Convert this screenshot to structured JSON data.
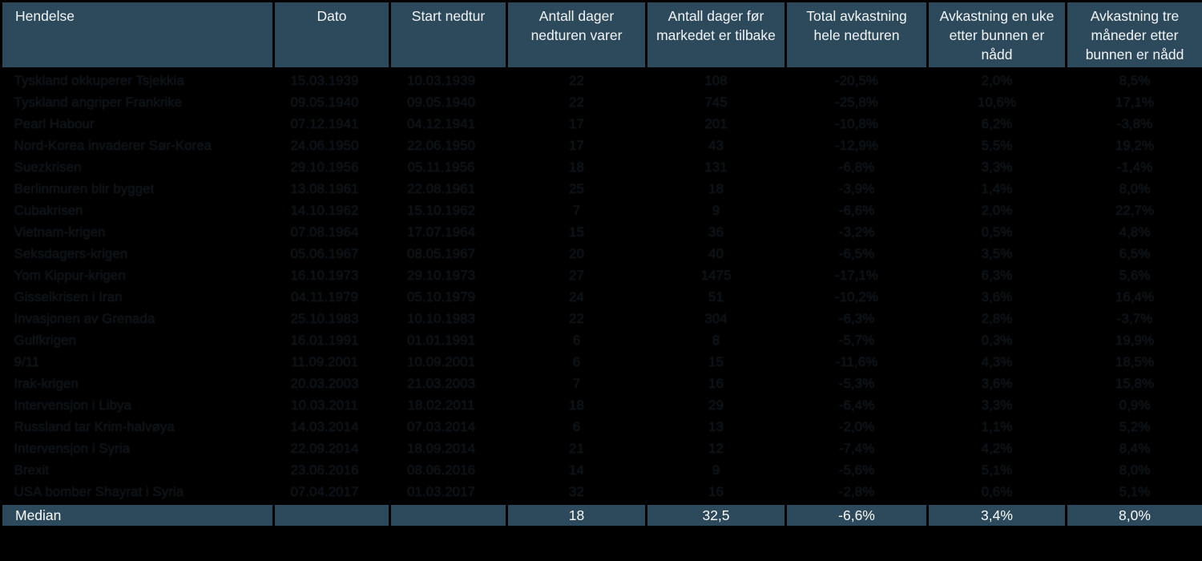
{
  "colors": {
    "header_bg": "#2d4a5c",
    "header_text": "#f2f4f6",
    "body_bg": "#000000",
    "body_text": "#0b1014",
    "footer_bg": "#2d4a5c",
    "footer_text": "#fafafa",
    "grid_border": "#000000"
  },
  "chart_data": {
    "type": "table",
    "columns": [
      "Hendelse",
      "Dato",
      "Start nedtur",
      "Antall dager nedturen varer",
      "Antall dager før markedet er tilbake",
      "Total avkastning hele nedturen",
      "Avkastning en uke etter bunnen er nådd",
      "Avkastning tre måneder etter bunnen er nådd"
    ],
    "rows": [
      [
        "Tyskland okkuperer Tsjekkia",
        "15.03.1939",
        "10.03.1939",
        "22",
        "108",
        "-20,5%",
        "2,0%",
        "8,5%"
      ],
      [
        "Tyskland angriper Frankrike",
        "09.05.1940",
        "09.05.1940",
        "22",
        "745",
        "-25,8%",
        "10,6%",
        "17,1%"
      ],
      [
        "Pearl Habour",
        "07.12.1941",
        "04.12.1941",
        "17",
        "201",
        "-10,8%",
        "6,2%",
        "-3,8%"
      ],
      [
        "Nord-Korea invaderer Sør-Korea",
        "24.06.1950",
        "22.06.1950",
        "17",
        "43",
        "-12,9%",
        "5,5%",
        "19,2%"
      ],
      [
        "Suezkrisen",
        "29.10.1956",
        "05.11.1956",
        "18",
        "131",
        "-6,8%",
        "3,3%",
        "-1,4%"
      ],
      [
        "Berlinmuren blir bygget",
        "13.08.1961",
        "22.08.1961",
        "25",
        "18",
        "-3,9%",
        "1,4%",
        "8,0%"
      ],
      [
        "Cubakrisen",
        "14.10.1962",
        "15.10.1962",
        "7",
        "9",
        "-6,6%",
        "2,0%",
        "22,7%"
      ],
      [
        "Vietnam-krigen",
        "07.08.1964",
        "17.07.1964",
        "15",
        "36",
        "-3,2%",
        "0,5%",
        "4,8%"
      ],
      [
        "Seksdagers-krigen",
        "05.06.1967",
        "08.05.1967",
        "20",
        "40",
        "-6,5%",
        "3,5%",
        "6,5%"
      ],
      [
        "Yom Kippur-krigen",
        "16.10.1973",
        "29.10.1973",
        "27",
        "1475",
        "-17,1%",
        "6,3%",
        "5,6%"
      ],
      [
        "Gisselkrisen i Iran",
        "04.11.1979",
        "05.10.1979",
        "24",
        "51",
        "-10,2%",
        "3,6%",
        "16,4%"
      ],
      [
        "Invasjonen av Grenada",
        "25.10.1983",
        "10.10.1983",
        "22",
        "304",
        "-6,3%",
        "2,8%",
        "-3,7%"
      ],
      [
        "Gulfkrigen",
        "16.01.1991",
        "01.01.1991",
        "6",
        "8",
        "-5,7%",
        "0,3%",
        "19,9%"
      ],
      [
        "9/11",
        "11.09.2001",
        "10.09.2001",
        "6",
        "15",
        "-11,6%",
        "4,3%",
        "18,5%"
      ],
      [
        "Irak-krigen",
        "20.03.2003",
        "21.03.2003",
        "7",
        "16",
        "-5,3%",
        "3,6%",
        "15,8%"
      ],
      [
        "Intervensjon i Libya",
        "10.03.2011",
        "18.02.2011",
        "18",
        "29",
        "-6,4%",
        "3,3%",
        "0,9%"
      ],
      [
        "Russland tar Krim-halvøya",
        "14.03.2014",
        "07.03.2014",
        "6",
        "13",
        "-2,0%",
        "1,1%",
        "5,2%"
      ],
      [
        "Intervensjon i Syria",
        "22.09.2014",
        "18.09.2014",
        "21",
        "12",
        "-7,4%",
        "4,2%",
        "8,4%"
      ],
      [
        "Brexit",
        "23.06.2016",
        "08.06.2016",
        "14",
        "9",
        "-5,6%",
        "5,1%",
        "8,0%"
      ],
      [
        "USA bomber Shayrat i Syria",
        "07.04.2017",
        "01.03.2017",
        "32",
        "16",
        "-2,8%",
        "0,6%",
        "5,1%"
      ]
    ],
    "footer": [
      "Median",
      "",
      "",
      "18",
      "32,5",
      "-6,6%",
      "3,4%",
      "8,0%"
    ]
  }
}
